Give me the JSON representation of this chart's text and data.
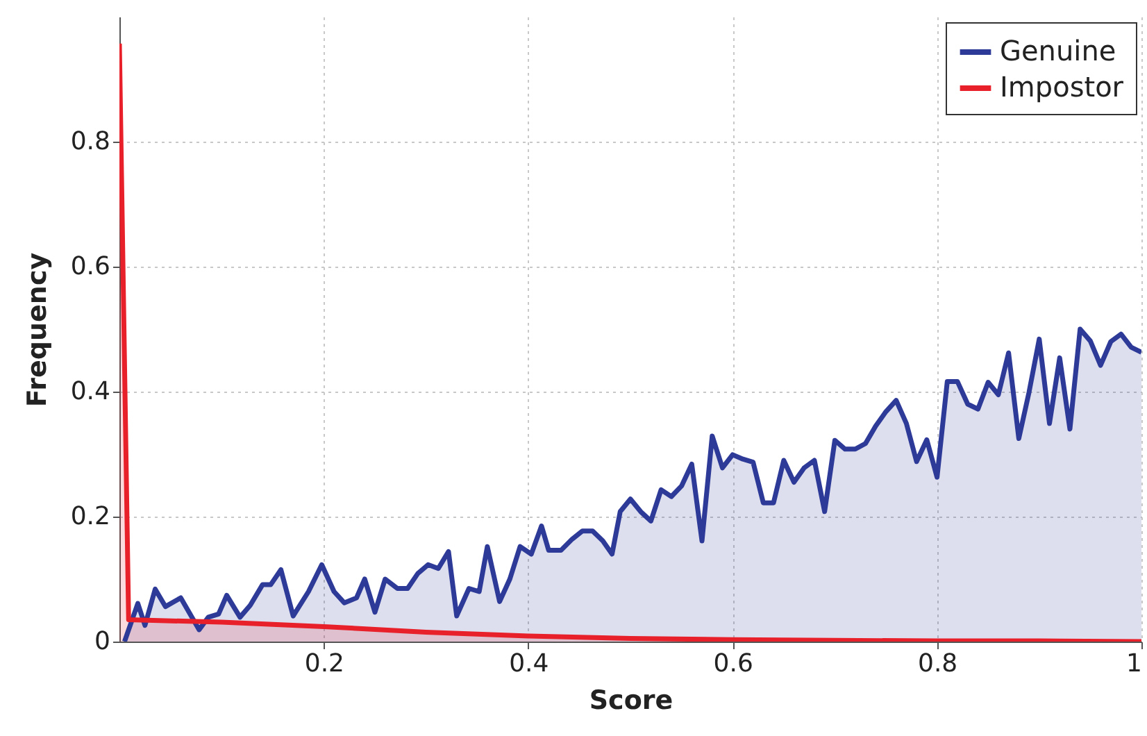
{
  "chart_data": {
    "type": "area",
    "xlabel": "Score",
    "ylabel": "Frequency",
    "xlim": [
      0,
      1
    ],
    "ylim": [
      0,
      1
    ],
    "xticks": [
      0.2,
      0.4,
      0.6,
      0.8,
      1
    ],
    "yticks": [
      0,
      0.2,
      0.4,
      0.6,
      0.8
    ],
    "grid": true,
    "legend": "top right",
    "line_style": "solid",
    "series": [
      {
        "name": "Genuine",
        "color": "#2e3a97",
        "x": [
          0.005,
          0.018,
          0.025,
          0.035,
          0.045,
          0.06,
          0.078,
          0.087,
          0.097,
          0.105,
          0.118,
          0.128,
          0.14,
          0.148,
          0.158,
          0.17,
          0.185,
          0.198,
          0.21,
          0.22,
          0.232,
          0.24,
          0.25,
          0.26,
          0.272,
          0.282,
          0.292,
          0.302,
          0.312,
          0.322,
          0.33,
          0.342,
          0.352,
          0.36,
          0.372,
          0.382,
          0.392,
          0.403,
          0.413,
          0.42,
          0.432,
          0.443,
          0.453,
          0.463,
          0.473,
          0.482,
          0.49,
          0.5,
          0.51,
          0.52,
          0.53,
          0.54,
          0.55,
          0.56,
          0.57,
          0.58,
          0.59,
          0.6,
          0.61,
          0.62,
          0.63,
          0.64,
          0.65,
          0.66,
          0.67,
          0.68,
          0.69,
          0.7,
          0.71,
          0.72,
          0.73,
          0.74,
          0.75,
          0.76,
          0.77,
          0.78,
          0.79,
          0.8,
          0.81,
          0.82,
          0.83,
          0.84,
          0.85,
          0.86,
          0.87,
          0.88,
          0.89,
          0.9,
          0.91,
          0.92,
          0.93,
          0.94,
          0.95,
          0.96,
          0.97,
          0.98,
          0.99,
          1.0
        ],
        "values": [
          0,
          0.061,
          0.026,
          0.084,
          0.056,
          0.07,
          0.019,
          0.039,
          0.044,
          0.074,
          0.039,
          0.058,
          0.091,
          0.091,
          0.115,
          0.041,
          0.08,
          0.123,
          0.08,
          0.062,
          0.07,
          0.1,
          0.047,
          0.1,
          0.085,
          0.085,
          0.109,
          0.123,
          0.117,
          0.144,
          0.041,
          0.085,
          0.08,
          0.152,
          0.064,
          0.1,
          0.152,
          0.14,
          0.185,
          0.146,
          0.146,
          0.164,
          0.177,
          0.177,
          0.161,
          0.14,
          0.208,
          0.228,
          0.208,
          0.193,
          0.243,
          0.232,
          0.249,
          0.284,
          0.161,
          0.329,
          0.278,
          0.299,
          0.292,
          0.287,
          0.222,
          0.222,
          0.29,
          0.255,
          0.278,
          0.29,
          0.208,
          0.322,
          0.308,
          0.308,
          0.317,
          0.345,
          0.368,
          0.386,
          0.349,
          0.288,
          0.323,
          0.263,
          0.416,
          0.416,
          0.38,
          0.372,
          0.415,
          0.395,
          0.462,
          0.325,
          0.399,
          0.484,
          0.349,
          0.454,
          0.34,
          0.5,
          0.481,
          0.442,
          0.48,
          0.492,
          0.471,
          0.463
        ]
      },
      {
        "name": "Impostor",
        "color": "#e8202a",
        "x": [
          0,
          0.009,
          0.1,
          0.2,
          0.3,
          0.4,
          0.5,
          0.6,
          0.7,
          0.8,
          0.9,
          1.0
        ],
        "values": [
          0.957,
          0.035,
          0.031,
          0.024,
          0.015,
          0.009,
          0.005,
          0.003,
          0.002,
          0.001,
          0.001,
          0
        ]
      }
    ]
  }
}
